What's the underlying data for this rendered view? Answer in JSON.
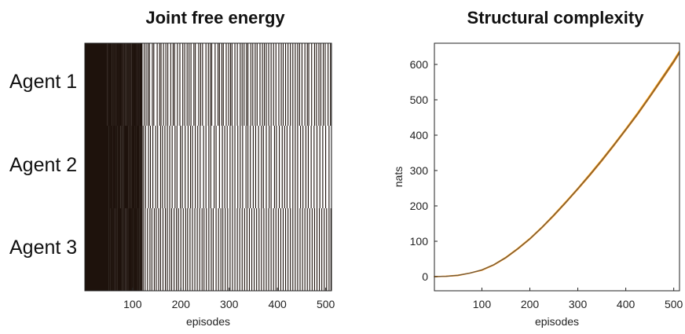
{
  "chart_data": [
    {
      "type": "heatmap",
      "title": "Joint free energy",
      "xlabel": "episodes",
      "ylabel": "",
      "xlim": [
        1,
        512
      ],
      "xticks": [
        100,
        200,
        300,
        400,
        500
      ],
      "rows": [
        "Agent 1",
        "Agent 2",
        "Agent 3"
      ],
      "colors": {
        "filled": "#1e120c",
        "empty": "#ffffff"
      },
      "solid_until_episode": [
        47,
        50,
        50
      ],
      "dense_until_episode": [
        118,
        118,
        118
      ],
      "dark_line_episodes": [
        [
          50,
          53,
          57,
          60,
          64,
          68,
          72,
          75,
          79,
          83,
          86,
          90,
          93,
          96,
          100,
          104,
          108,
          112,
          116,
          123,
          127,
          131,
          134,
          140,
          143,
          150,
          155,
          158,
          163,
          168,
          172,
          178,
          183,
          186,
          192,
          197,
          203,
          207,
          212,
          216,
          220,
          226,
          229,
          236,
          240,
          244,
          251,
          256,
          260,
          263,
          270,
          276,
          279,
          284,
          287,
          293,
          298,
          302,
          305,
          311,
          316,
          322,
          326,
          330,
          335,
          338,
          344,
          348,
          353,
          357,
          363,
          368,
          372,
          376,
          381,
          386,
          391,
          396,
          402,
          407,
          411,
          416,
          421,
          426,
          431,
          436,
          441,
          445,
          450,
          456,
          461,
          464,
          470,
          476,
          480,
          485,
          489,
          494,
          498,
          504,
          509
        ],
        [
          52,
          56,
          61,
          64,
          67,
          72,
          76,
          80,
          84,
          88,
          92,
          96,
          101,
          105,
          109,
          114,
          119,
          122,
          126,
          132,
          136,
          141,
          147,
          151,
          157,
          161,
          166,
          171,
          176,
          181,
          187,
          191,
          198,
          202,
          208,
          214,
          219,
          223,
          229,
          234,
          239,
          246,
          251,
          257,
          261,
          268,
          272,
          279,
          285,
          290,
          295,
          301,
          306,
          311,
          317,
          322,
          327,
          334,
          338,
          343,
          349,
          354,
          360,
          366,
          370,
          376,
          382,
          386,
          393,
          397,
          403,
          409,
          414,
          419,
          425,
          431,
          436,
          441,
          447,
          452,
          458,
          463,
          469,
          475,
          481,
          487,
          493,
          499,
          506,
          511
        ],
        [
          51,
          55,
          59,
          63,
          67,
          71,
          75,
          79,
          82,
          86,
          90,
          94,
          98,
          103,
          107,
          111,
          115,
          121,
          125,
          130,
          135,
          139,
          144,
          148,
          153,
          157,
          162,
          167,
          171,
          176,
          180,
          185,
          190,
          194,
          199,
          204,
          209,
          213,
          218,
          223,
          228,
          233,
          238,
          243,
          247,
          252,
          257,
          262,
          266,
          272,
          277,
          282,
          286,
          291,
          296,
          301,
          306,
          311,
          316,
          321,
          326,
          331,
          336,
          341,
          346,
          351,
          356,
          361,
          366,
          371,
          376,
          381,
          386,
          391,
          396,
          401,
          406,
          411,
          416,
          421,
          426,
          431,
          436,
          441,
          446,
          451,
          456,
          461,
          466,
          471,
          476,
          481,
          486,
          491,
          496,
          501,
          506,
          510
        ]
      ]
    },
    {
      "type": "line",
      "title": "Structural complexity",
      "xlabel": "episodes",
      "ylabel": "nats",
      "xlim": [
        1,
        512
      ],
      "ylim": [
        -40,
        660
      ],
      "xticks": [
        100,
        200,
        300,
        400,
        500
      ],
      "yticks": [
        0,
        100,
        200,
        300,
        400,
        500,
        600
      ],
      "series_colors": [
        "#ff9900",
        "#e07a00",
        "#555555"
      ],
      "x": [
        0,
        25,
        50,
        75,
        100,
        125,
        150,
        175,
        200,
        225,
        250,
        275,
        300,
        325,
        350,
        375,
        400,
        425,
        450,
        475,
        500,
        512
      ],
      "series": [
        {
          "values": [
            0,
            1,
            4,
            10,
            19,
            34,
            55,
            80,
            108,
            140,
            175,
            212,
            250,
            290,
            331,
            374,
            418,
            464,
            512,
            562,
            612,
            638
          ]
        },
        {
          "values": [
            0,
            1,
            3,
            10,
            18,
            33,
            53,
            78,
            106,
            138,
            172,
            209,
            247,
            286,
            327,
            370,
            414,
            459,
            507,
            556,
            606,
            632
          ]
        },
        {
          "values": [
            0,
            1,
            4,
            10,
            19,
            34,
            54,
            79,
            107,
            139,
            174,
            210,
            249,
            288,
            329,
            372,
            416,
            461,
            509,
            559,
            609,
            635
          ]
        }
      ]
    }
  ]
}
